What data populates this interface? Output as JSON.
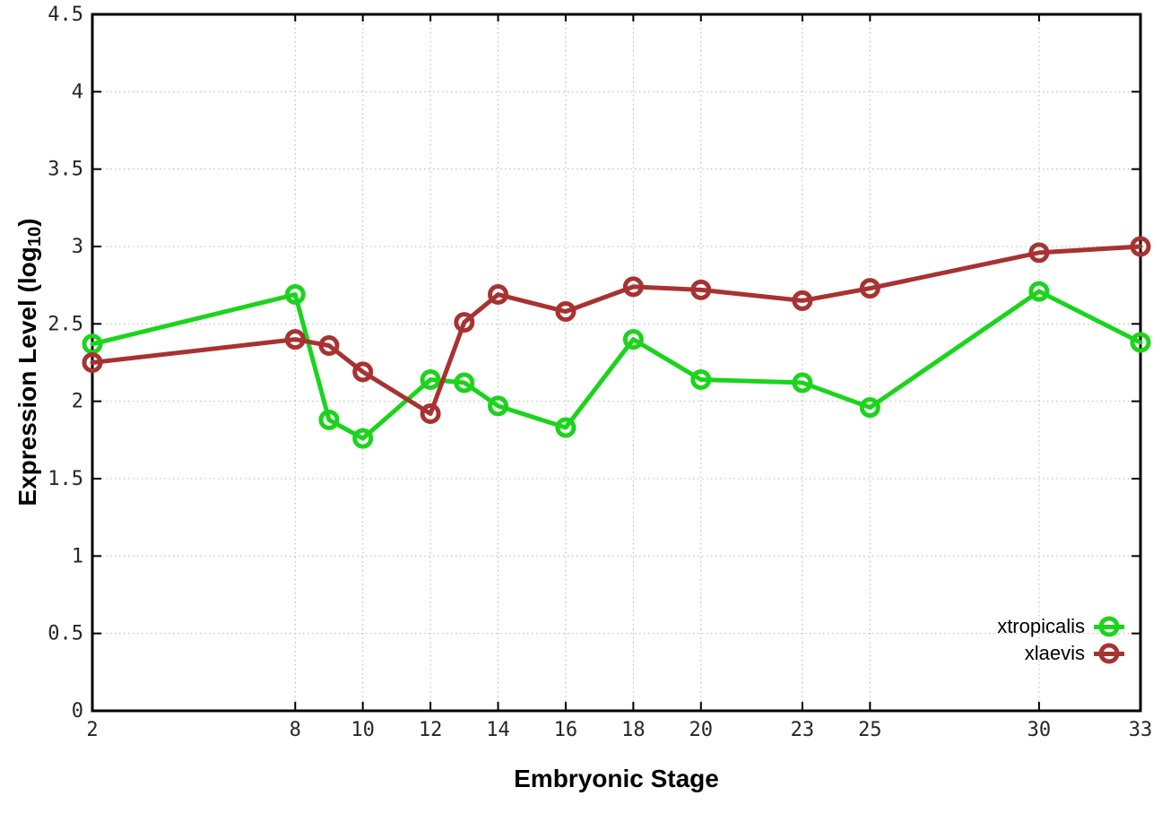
{
  "figure": {
    "background": "#ffffff",
    "xlabel": "Embryonic Stage",
    "ylabel_main": "Expression Level (log",
    "ylabel_sub": "10",
    "ylabel_close": ")"
  },
  "chart_data": {
    "type": "line",
    "title": "",
    "xlabel": "Embryonic Stage",
    "ylabel": "Expression Level (log10)",
    "grid": true,
    "legend_position": "bottom-right",
    "xlim": [
      2,
      33
    ],
    "ylim": [
      0,
      4.5
    ],
    "xticks": [
      2,
      8,
      10,
      12,
      14,
      16,
      18,
      20,
      23,
      25,
      30,
      33
    ],
    "yticks": [
      {
        "v": 0,
        "label": "0"
      },
      {
        "v": 0.5,
        "label": "0.5"
      },
      {
        "v": 1,
        "label": "1"
      },
      {
        "v": 1.5,
        "label": "1.5"
      },
      {
        "v": 2,
        "label": "2"
      },
      {
        "v": 2.5,
        "label": "2.5"
      },
      {
        "v": 3,
        "label": "3"
      },
      {
        "v": 3.5,
        "label": "3.5"
      },
      {
        "v": 4,
        "label": "4"
      },
      {
        "v": 4.5,
        "label": "4.5"
      }
    ],
    "x": [
      2,
      8,
      9,
      10,
      12,
      13,
      14,
      16,
      18,
      20,
      23,
      25,
      30,
      33
    ],
    "series": [
      {
        "name": "xtropicalis",
        "color": "#1bd41b",
        "values": [
          2.37,
          2.69,
          1.88,
          1.76,
          2.14,
          2.12,
          1.97,
          1.83,
          2.4,
          2.14,
          2.12,
          1.96,
          2.71,
          2.38
        ]
      },
      {
        "name": "xlaevis",
        "color": "#a83232",
        "values": [
          2.25,
          2.4,
          2.36,
          2.19,
          1.92,
          2.51,
          2.69,
          2.58,
          2.74,
          2.72,
          2.65,
          2.73,
          2.96,
          3.0
        ]
      }
    ]
  }
}
